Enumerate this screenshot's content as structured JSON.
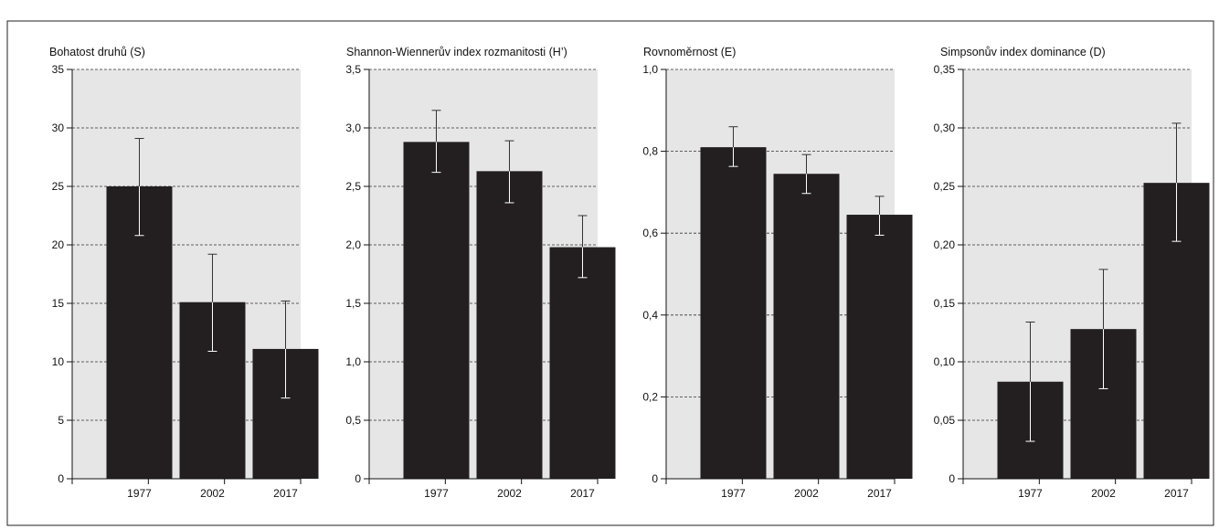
{
  "chart_data": [
    {
      "type": "bar",
      "title": "Bohatost druhů (S)",
      "categories": [
        "1977",
        "2002",
        "2017"
      ],
      "values": [
        25,
        15.1,
        11.1
      ],
      "error_low": [
        20.8,
        10.9,
        6.9
      ],
      "error_high": [
        29.1,
        19.2,
        15.2
      ],
      "ylim": [
        0,
        35
      ],
      "yticks": [
        0,
        5,
        10,
        15,
        20,
        25,
        30,
        35
      ],
      "ytick_labels": [
        "0",
        "5",
        "10",
        "15",
        "20",
        "25",
        "30",
        "35"
      ],
      "grid": "horizontal dashed"
    },
    {
      "type": "bar",
      "title": "Shannon-Wiennerův index rozmanitosti (H’)",
      "categories": [
        "1977",
        "2002",
        "2017"
      ],
      "values": [
        2.88,
        2.63,
        1.98
      ],
      "error_low": [
        2.62,
        2.36,
        1.72
      ],
      "error_high": [
        3.15,
        2.89,
        2.25
      ],
      "ylim": [
        0,
        3.5
      ],
      "yticks": [
        0,
        0.5,
        1,
        1.5,
        2,
        2.5,
        3,
        3.5
      ],
      "ytick_labels": [
        "0",
        "0,5",
        "1,0",
        "1,5",
        "2,0",
        "2,5",
        "3,0",
        "3,5"
      ],
      "grid": "horizontal dashed"
    },
    {
      "type": "bar",
      "title": "Rovnoměrnost (E)",
      "categories": [
        "1977",
        "2002",
        "2017"
      ],
      "values": [
        0.81,
        0.745,
        0.645
      ],
      "error_low": [
        0.763,
        0.697,
        0.595
      ],
      "error_high": [
        0.86,
        0.792,
        0.69
      ],
      "ylim": [
        0,
        1.0
      ],
      "yticks": [
        0,
        0.2,
        0.4,
        0.6,
        0.8,
        1.0
      ],
      "ytick_labels": [
        "0",
        "0,2",
        "0,4",
        "0,6",
        "0,8",
        "1,0"
      ],
      "grid": "horizontal dashed"
    },
    {
      "type": "bar",
      "title": "Simpsonův index dominance (D)",
      "categories": [
        "1977",
        "2002",
        "2017"
      ],
      "values": [
        0.083,
        0.128,
        0.253
      ],
      "error_low": [
        0.032,
        0.077,
        0.203
      ],
      "error_high": [
        0.134,
        0.179,
        0.304
      ],
      "ylim": [
        0,
        0.35
      ],
      "yticks": [
        0,
        0.05,
        0.1,
        0.15,
        0.2,
        0.25,
        0.3,
        0.35
      ],
      "ytick_labels": [
        "0",
        "0,05",
        "0,10",
        "0,15",
        "0,20",
        "0,25",
        "0,30",
        "0,35"
      ],
      "grid": "horizontal dashed"
    }
  ],
  "colors": {
    "plot_background": "#e6e6e6",
    "bar": "#231f20",
    "gridline": "#333333",
    "error_bar": "#ffffff"
  }
}
